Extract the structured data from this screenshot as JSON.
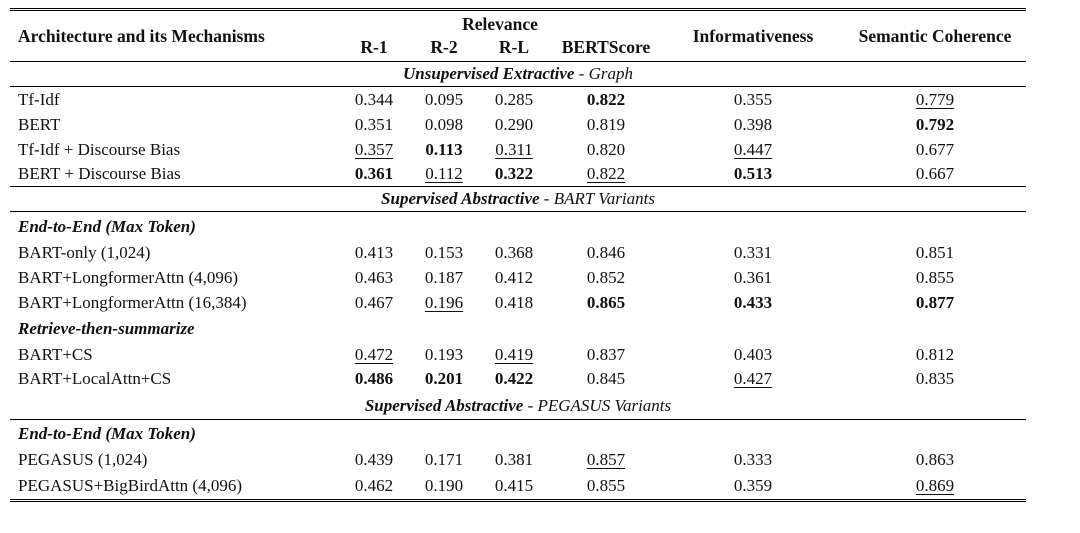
{
  "header": {
    "arch": "Architecture and its Mechanisms",
    "relevance": "Relevance",
    "r1": "R-1",
    "r2": "R-2",
    "rl": "R-L",
    "bertscore": "BERTScore",
    "informativeness": "Informativeness",
    "semantic_coherence": "Semantic Coherence"
  },
  "sections": [
    {
      "bold": "Unsupervised Extractive",
      "rest": " - Graph"
    },
    {
      "bold": "Supervised Abstractive",
      "rest": " - BART Variants"
    },
    {
      "bold": "Supervised Abstractive",
      "rest": " - PEGASUS Variants"
    }
  ],
  "groups": {
    "bart_e2e": "End-to-End (Max Token)",
    "bart_rts": "Retrieve-then-summarize",
    "pegasus_e2e": "End-to-End (Max Token)"
  },
  "rows": [
    {
      "name": "Tf-Idf",
      "r1": "0.344",
      "r2": "0.095",
      "rl": "0.285",
      "bs": "0.822",
      "inf": "0.355",
      "sc": "0.779"
    },
    {
      "name": "BERT",
      "r1": "0.351",
      "r2": "0.098",
      "rl": "0.290",
      "bs": "0.819",
      "inf": "0.398",
      "sc": "0.792"
    },
    {
      "name": "Tf-Idf + Discourse Bias",
      "r1": "0.357",
      "r2": "0.113",
      "rl": "0.311",
      "bs": "0.820",
      "inf": "0.447",
      "sc": "0.677"
    },
    {
      "name": "BERT + Discourse Bias",
      "r1": "0.361",
      "r2": "0.112",
      "rl": "0.322",
      "bs": "0.822",
      "inf": "0.513",
      "sc": "0.667"
    },
    {
      "name": "BART-only (1,024)",
      "r1": "0.413",
      "r2": "0.153",
      "rl": "0.368",
      "bs": "0.846",
      "inf": "0.331",
      "sc": "0.851"
    },
    {
      "name": "BART+LongformerAttn (4,096)",
      "r1": "0.463",
      "r2": "0.187",
      "rl": "0.412",
      "bs": "0.852",
      "inf": "0.361",
      "sc": "0.855"
    },
    {
      "name": "BART+LongformerAttn (16,384)",
      "r1": "0.467",
      "r2": "0.196",
      "rl": "0.418",
      "bs": "0.865",
      "inf": "0.433",
      "sc": "0.877"
    },
    {
      "name": "BART+CS",
      "r1": "0.472",
      "r2": "0.193",
      "rl": "0.419",
      "bs": "0.837",
      "inf": "0.403",
      "sc": "0.812"
    },
    {
      "name": "BART+LocalAttn+CS",
      "r1": "0.486",
      "r2": "0.201",
      "rl": "0.422",
      "bs": "0.845",
      "inf": "0.427",
      "sc": "0.835"
    },
    {
      "name": "PEGASUS (1,024)",
      "r1": "0.439",
      "r2": "0.171",
      "rl": "0.381",
      "bs": "0.857",
      "inf": "0.333",
      "sc": "0.863"
    },
    {
      "name": "PEGASUS+BigBirdAttn (4,096)",
      "r1": "0.462",
      "r2": "0.190",
      "rl": "0.415",
      "bs": "0.855",
      "inf": "0.359",
      "sc": "0.869"
    }
  ]
}
